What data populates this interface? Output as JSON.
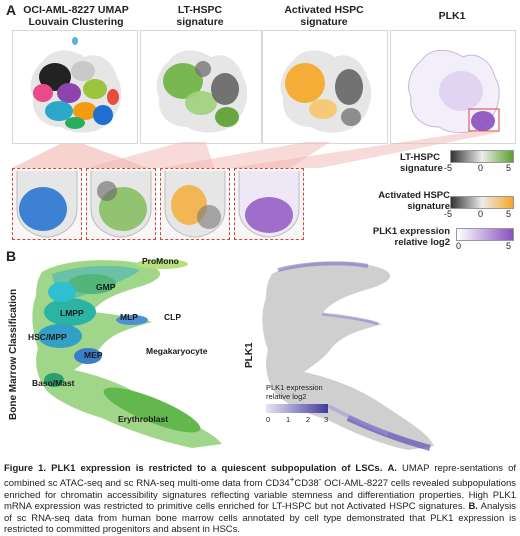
{
  "panel_a": {
    "letter": "A",
    "titles": [
      {
        "line1": "OCI-AML-8227 UMAP",
        "line2": "Louvain Clustering"
      },
      {
        "line1": "LT-HSPC",
        "line2": "signature"
      },
      {
        "line1": "Activated HSPC",
        "line2": "signature"
      },
      {
        "line1": "PLK1",
        "line2": ""
      }
    ],
    "legends": [
      {
        "title1": "LT-HSPC",
        "title2": "signature",
        "min": "-5",
        "mid": "0",
        "max": "5",
        "color_low": "#333333",
        "color_mid": "#ececec",
        "color_high": "#5aa02c"
      },
      {
        "title1": "Activated HSPC",
        "title2": "signature",
        "min": "-5",
        "mid": "0",
        "max": "5",
        "color_low": "#333333",
        "color_mid": "#ececec",
        "color_high": "#f5a623"
      },
      {
        "title1": "PLK1 expression",
        "title2": "relative log2",
        "min": "0",
        "max": "5",
        "color_low": "#ffffff",
        "color_high": "#8a4fbf"
      }
    ]
  },
  "panel_b": {
    "letter": "B",
    "left_ylabel": "Bone Marrow Classification",
    "right_ylabel": "PLK1",
    "cell_labels": [
      "ProMono",
      "GMP",
      "LMPP",
      "MLP",
      "CLP",
      "HSC/MPP",
      "MEP",
      "Megakaryocyte",
      "Baso/Mast",
      "Erythroblast"
    ],
    "plk_legend": {
      "title1": "PLK1 expression",
      "title2": "relative log2",
      "ticks": [
        "0",
        "1",
        "2",
        "3"
      ],
      "color_low": "#e9e4f5",
      "color_high": "#3f3a9c"
    }
  },
  "caption": {
    "figure_label": "Figure 1.",
    "title": "PLK1 expression is restricted to a quiescent subpopulation of LSCs.",
    "part_a_label": "A.",
    "text_a1": "UMAP repre-sentations of combined sc ATAC-seq and sc RNA-seq multi-ome data from CD34",
    "sup1": "+",
    "text_a2": "CD38",
    "sup2": "-",
    "text_a3": "OCI-AML-8227 cells revealed subpopulations enriched for chromatin accessibility signatures reflecting variable stemness and differentiation properties. High PLK1 mRNA expression was restricted to primitive cells enriched for LT-HSPC but not Activated HSPC signatures.",
    "part_b_label": "B.",
    "text_b": "Analysis of sc RNA-seq data from human bone marrow cells annotated by cell type demonstrated that PLK1 expression is restricted to committed progenitors and absent in HSCs."
  }
}
